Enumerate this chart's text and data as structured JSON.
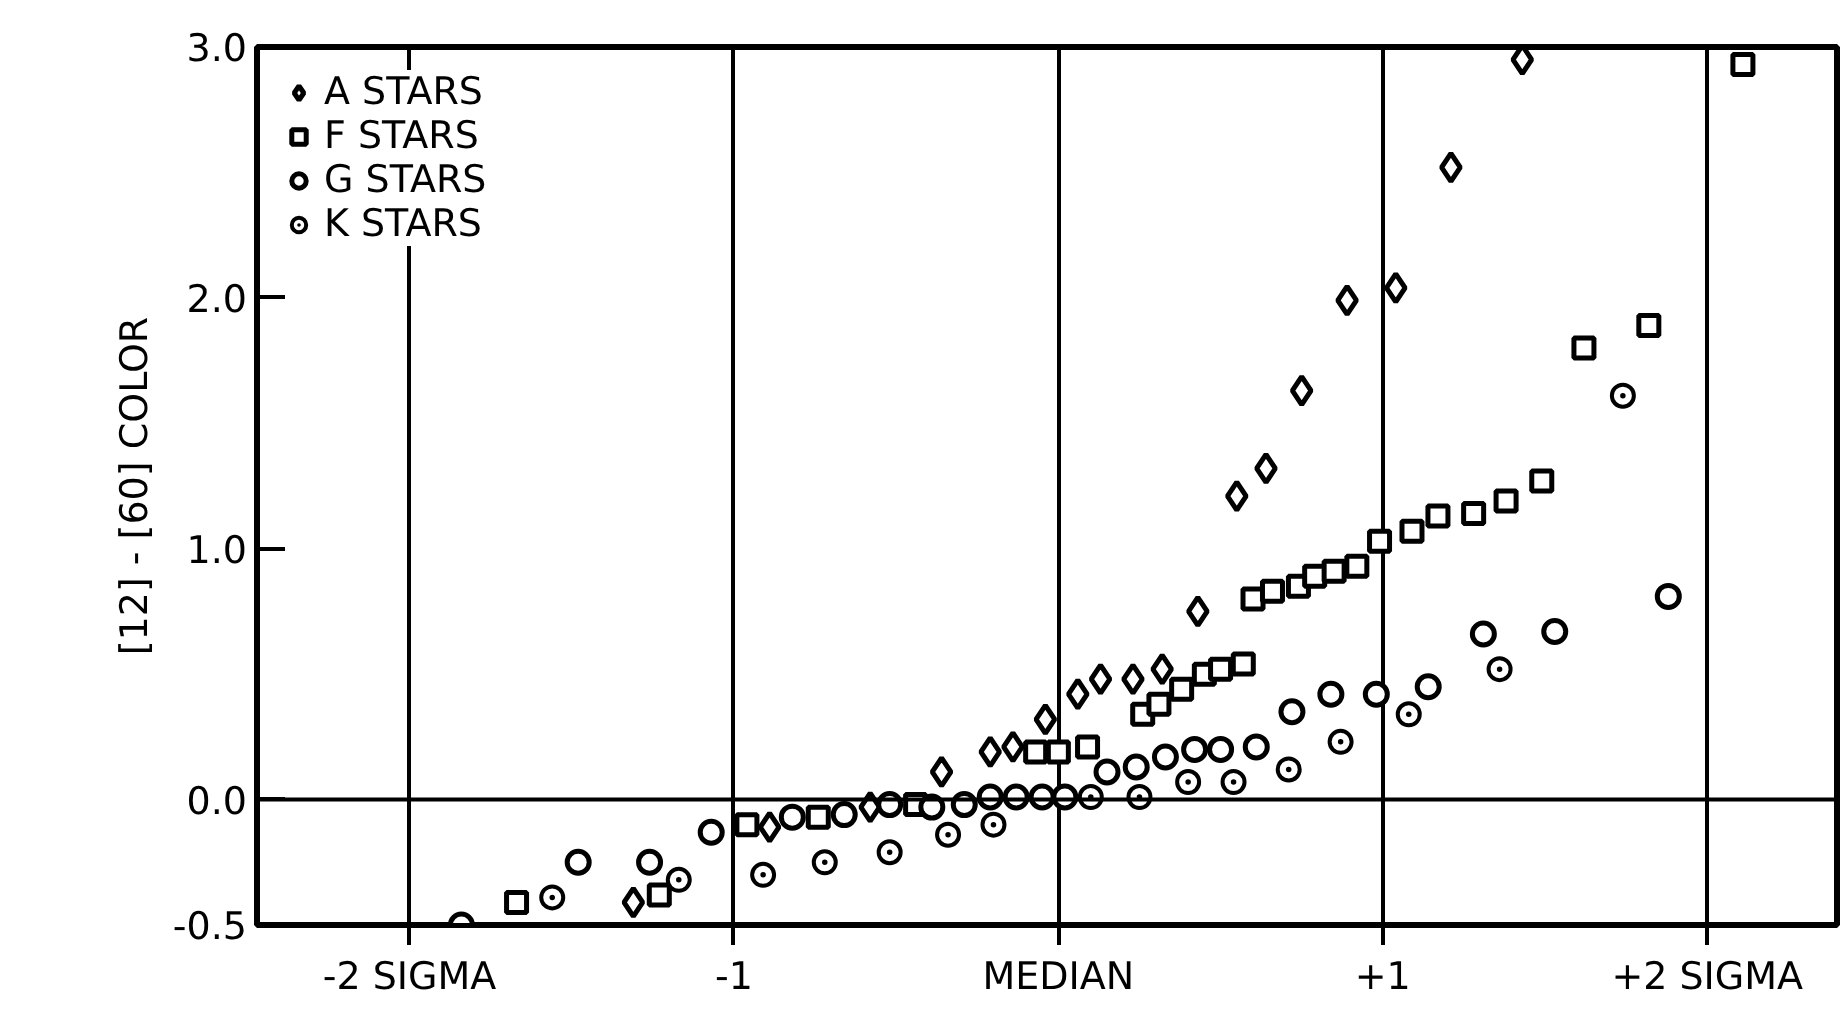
{
  "chart_data": {
    "type": "scatter",
    "ylabel": "[12] - [60] COLOR",
    "xlim": [
      -2.47,
      2.4
    ],
    "ylim": [
      -0.5,
      3.0
    ],
    "xticks": [
      {
        "value": -2,
        "label": "-2 SIGMA"
      },
      -1,
      {
        "value": 0,
        "label": "MEDIAN"
      },
      {
        "value": 1,
        "label": "+1"
      },
      {
        "value": 2,
        "label": "+2 SIGMA"
      }
    ],
    "yticks": [
      -0.5,
      {
        "value": 0,
        "label": "0.0"
      },
      {
        "value": 1,
        "label": "1.0"
      },
      {
        "value": 2,
        "label": "2.0"
      },
      {
        "value": 3,
        "label": "3.0"
      }
    ],
    "grid": "x",
    "legend": "top left",
    "ref_lines": [
      {
        "axis": "y",
        "value": 0,
        "label": null
      }
    ],
    "series": [
      {
        "name": "A STARS",
        "color": "#000000",
        "marker": "diamond",
        "x": [
          -1.31,
          -0.89,
          -0.58,
          -0.36,
          -0.21,
          -0.14,
          -0.04,
          0.06,
          0.13,
          0.23,
          0.32,
          0.43,
          0.55,
          0.64,
          0.75,
          0.89,
          1.04,
          1.21,
          1.43
        ],
        "values": [
          -0.41,
          -0.11,
          -0.03,
          0.11,
          0.19,
          0.21,
          0.32,
          0.42,
          0.48,
          0.48,
          0.52,
          0.75,
          1.21,
          1.32,
          1.63,
          1.99,
          2.04,
          2.52,
          2.95
        ]
      },
      {
        "name": "F STARS",
        "color": "#000000",
        "marker": "square",
        "x": [
          -1.67,
          -1.23,
          -0.96,
          -0.74,
          -0.44,
          -0.07,
          0.0,
          0.09,
          0.26,
          0.31,
          0.38,
          0.45,
          0.5,
          0.57,
          0.6,
          0.66,
          0.74,
          0.79,
          0.85,
          0.92,
          0.99,
          1.09,
          1.17,
          1.28,
          1.38,
          1.49,
          1.62,
          1.82,
          2.11
        ],
        "values": [
          -0.41,
          -0.38,
          -0.1,
          -0.07,
          -0.02,
          0.19,
          0.19,
          0.21,
          0.34,
          0.38,
          0.44,
          0.5,
          0.52,
          0.54,
          0.8,
          0.83,
          0.85,
          0.89,
          0.91,
          0.93,
          1.03,
          1.07,
          1.13,
          1.14,
          1.19,
          1.27,
          1.8,
          1.89,
          2.93
        ]
      },
      {
        "name": "G STARS",
        "color": "#000000",
        "marker": "circle",
        "x": [
          -1.84,
          -1.48,
          -1.26,
          -1.07,
          -0.82,
          -0.66,
          -0.52,
          -0.39,
          -0.29,
          -0.21,
          -0.13,
          -0.05,
          0.02,
          0.15,
          0.24,
          0.33,
          0.42,
          0.5,
          0.61,
          0.72,
          0.84,
          0.98,
          1.14,
          1.31,
          1.53,
          1.88
        ],
        "values": [
          -0.5,
          -0.25,
          -0.25,
          -0.13,
          -0.07,
          -0.06,
          -0.02,
          -0.03,
          -0.02,
          0.01,
          0.01,
          0.01,
          0.01,
          0.11,
          0.13,
          0.17,
          0.2,
          0.2,
          0.21,
          0.35,
          0.42,
          0.42,
          0.45,
          0.66,
          0.67,
          0.81
        ]
      },
      {
        "name": "K STARS",
        "color": "#000000",
        "marker": "circle_dot",
        "x": [
          -1.56,
          -1.17,
          -0.91,
          -0.72,
          -0.52,
          -0.34,
          -0.2,
          0.1,
          0.25,
          0.4,
          0.54,
          0.71,
          0.87,
          1.08,
          1.36,
          1.74
        ],
        "values": [
          -0.39,
          -0.32,
          -0.3,
          -0.25,
          -0.21,
          -0.14,
          -0.1,
          0.01,
          0.01,
          0.07,
          0.07,
          0.12,
          0.23,
          0.34,
          0.52,
          1.61
        ]
      }
    ]
  }
}
